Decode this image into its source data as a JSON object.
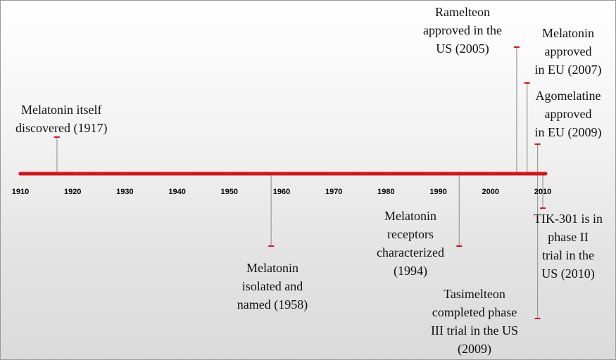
{
  "timeline": {
    "axis_color": "#d6151b",
    "stem_color": "#9a9a9a",
    "x_range": [
      1910,
      2010
    ],
    "ticks": [
      "1910",
      "1920",
      "1930",
      "1940",
      "1950",
      "1960",
      "1970",
      "1980",
      "1990",
      "2000",
      "2010"
    ],
    "tick_years": [
      1910,
      1920,
      1930,
      1940,
      1950,
      1960,
      1970,
      1980,
      1990,
      2000,
      2010
    ],
    "events": [
      {
        "id": "melatonin-discovered",
        "year": 1917,
        "lines": [
          "Melatonin itself",
          "discovered (1917)"
        ]
      },
      {
        "id": "melatonin-isolated",
        "year": 1958,
        "lines": [
          "Melatonin",
          "isolated and",
          "named (1958)"
        ]
      },
      {
        "id": "receptors-characterized",
        "year": 1994,
        "lines": [
          "Melatonin",
          "receptors",
          "characterized",
          "(1994)"
        ]
      },
      {
        "id": "ramelteon-approved",
        "year": 2005,
        "lines": [
          "Ramelteon",
          "approved in the",
          "US (2005)"
        ]
      },
      {
        "id": "melatonin-eu",
        "year": 2007,
        "lines": [
          "Melatonin",
          "approved",
          "in EU (2007)"
        ]
      },
      {
        "id": "agomelatine-eu",
        "year": 2009,
        "lines": [
          "Agomelatine",
          "approved",
          "in EU (2009)"
        ]
      },
      {
        "id": "tasimelteon-trial",
        "year": 2009,
        "lines": [
          "Tasimelteon",
          "completed phase",
          "III trial in the",
          "US",
          "(2009)"
        ]
      },
      {
        "id": "tik301-trial",
        "year": 2010,
        "lines": [
          "TIK-301 is in",
          "phase II",
          "trial in the",
          "US (2010)"
        ]
      }
    ]
  }
}
